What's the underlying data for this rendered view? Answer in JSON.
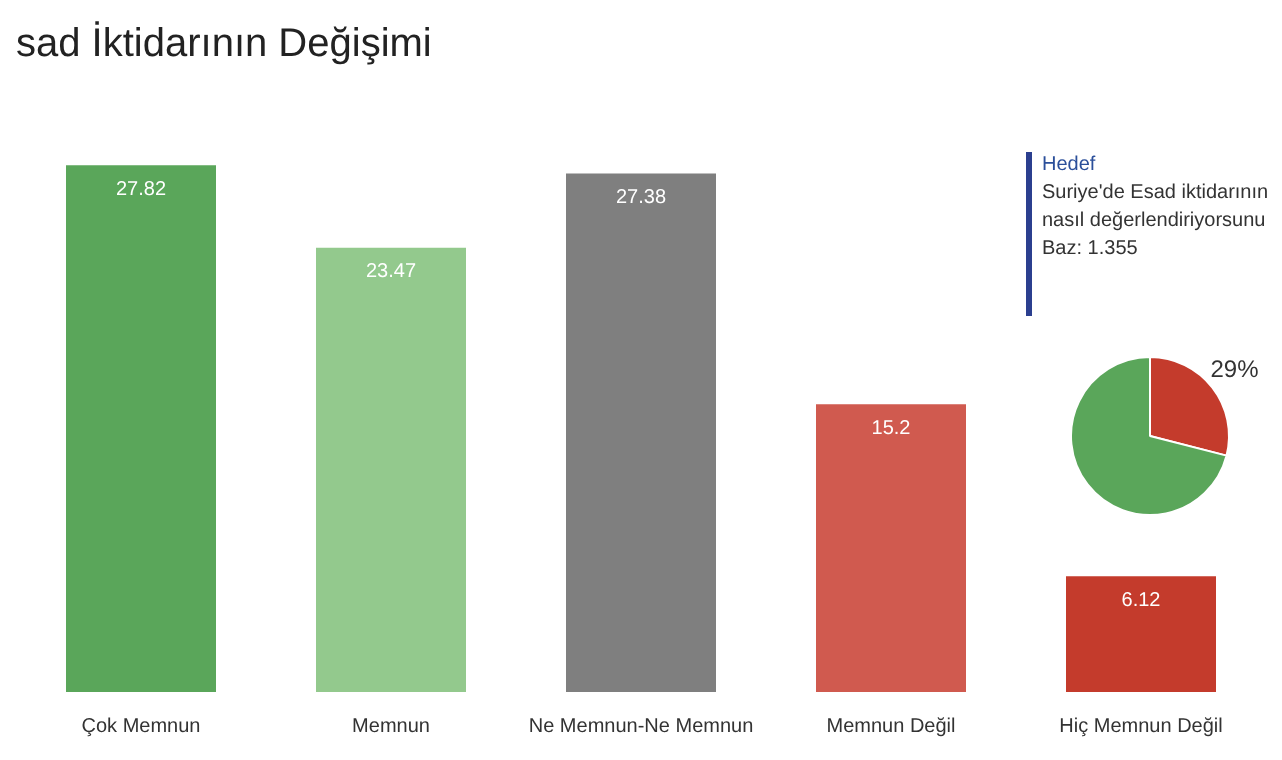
{
  "chart_data": [
    {
      "type": "bar",
      "title": "sad İktidarının Değişimi",
      "categories": [
        "Çok Memnun",
        "Memnun",
        "Ne Memnun-Ne Memnun",
        "Memnun Değil",
        "Hiç Memnun Değil"
      ],
      "values": [
        27.82,
        23.47,
        27.38,
        15.2,
        6.12
      ],
      "colors": [
        "#5aa65a",
        "#93c98d",
        "#7f7f7f",
        "#d05a4f",
        "#c43b2c"
      ],
      "data_labels": true
    },
    {
      "type": "pie",
      "categories": [
        null,
        null
      ],
      "values": [
        29,
        71
      ],
      "colors": [
        "#c43b2c",
        "#5aa65a"
      ],
      "value_labels": [
        "29%",
        null
      ],
      "annotations": [
        "Hedef",
        "Suriye'de Esad iktidarının",
        "nasıl değerlendiriyorsunu",
        "Baz: 1.355"
      ]
    }
  ]
}
